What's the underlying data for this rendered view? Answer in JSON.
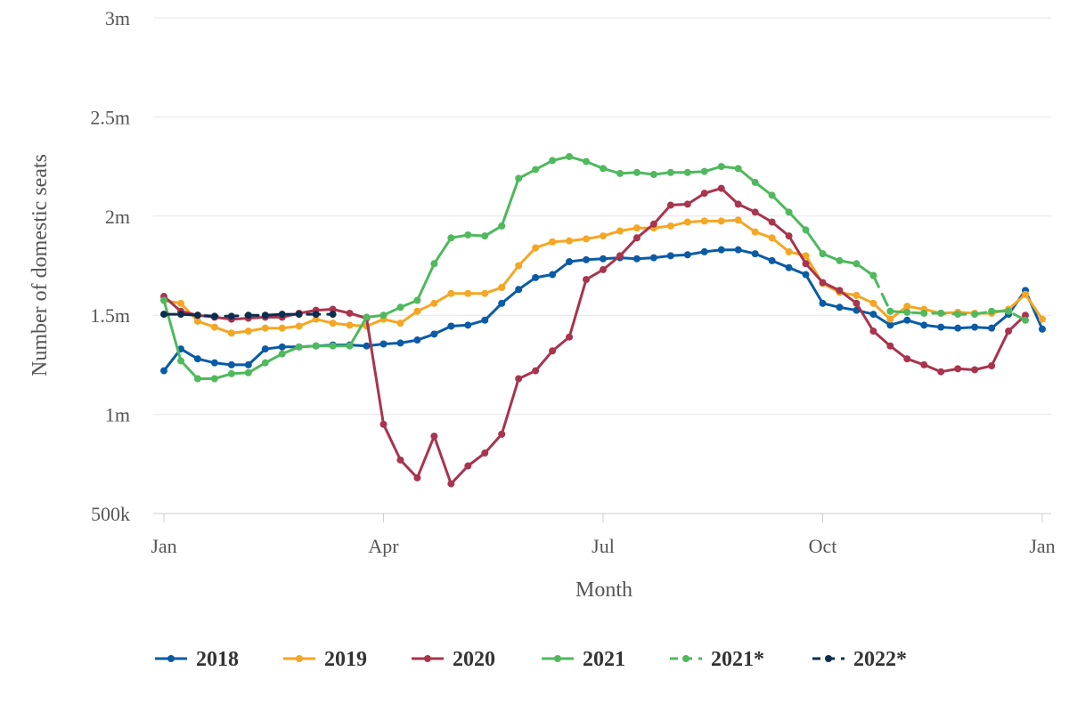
{
  "chart_data": {
    "type": "line",
    "title": "",
    "xlabel": "Month",
    "ylabel": "Number of domestic seats",
    "x_ticks": [
      {
        "label": "Jan",
        "week": 0
      },
      {
        "label": "Apr",
        "week": 13
      },
      {
        "label": "Jul",
        "week": 26
      },
      {
        "label": "Oct",
        "week": 39
      },
      {
        "label": "Jan",
        "week": 52
      }
    ],
    "ylim": [
      500000,
      3000000
    ],
    "y_ticks": [
      {
        "label": "500k",
        "value": 500000
      },
      {
        "label": "1m",
        "value": 1000000
      },
      {
        "label": "1.5m",
        "value": 1500000
      },
      {
        "label": "2m",
        "value": 2000000
      },
      {
        "label": "2.5m",
        "value": 2500000
      },
      {
        "label": "3m",
        "value": 3000000
      }
    ],
    "grid": true,
    "legend_position": "bottom",
    "series": [
      {
        "name": "2018",
        "color": "#0a5ba6",
        "dashed": false,
        "points": [
          [
            0,
            1220000
          ],
          [
            1,
            1330000
          ],
          [
            2,
            1280000
          ],
          [
            3,
            1260000
          ],
          [
            4,
            1250000
          ],
          [
            5,
            1250000
          ],
          [
            6,
            1330000
          ],
          [
            7,
            1340000
          ],
          [
            8,
            1340000
          ],
          [
            9,
            1345000
          ],
          [
            10,
            1350000
          ],
          [
            11,
            1350000
          ],
          [
            12,
            1345000
          ],
          [
            13,
            1355000
          ],
          [
            14,
            1360000
          ],
          [
            15,
            1375000
          ],
          [
            16,
            1405000
          ],
          [
            17,
            1445000
          ],
          [
            18,
            1450000
          ],
          [
            19,
            1475000
          ],
          [
            20,
            1560000
          ],
          [
            21,
            1630000
          ],
          [
            22,
            1690000
          ],
          [
            23,
            1705000
          ],
          [
            24,
            1770000
          ],
          [
            25,
            1780000
          ],
          [
            26,
            1785000
          ],
          [
            27,
            1790000
          ],
          [
            28,
            1785000
          ],
          [
            29,
            1790000
          ],
          [
            30,
            1800000
          ],
          [
            31,
            1805000
          ],
          [
            32,
            1820000
          ],
          [
            33,
            1830000
          ],
          [
            34,
            1830000
          ],
          [
            35,
            1810000
          ],
          [
            36,
            1775000
          ],
          [
            37,
            1740000
          ],
          [
            38,
            1705000
          ],
          [
            39,
            1560000
          ],
          [
            40,
            1540000
          ],
          [
            41,
            1525000
          ],
          [
            42,
            1505000
          ],
          [
            43,
            1450000
          ],
          [
            44,
            1475000
          ],
          [
            45,
            1450000
          ],
          [
            46,
            1440000
          ],
          [
            47,
            1435000
          ],
          [
            48,
            1440000
          ],
          [
            49,
            1435000
          ],
          [
            50,
            1505000
          ],
          [
            51,
            1625000
          ],
          [
            52,
            1430000
          ]
        ]
      },
      {
        "name": "2019",
        "color": "#f5a623",
        "dashed": false,
        "points": [
          [
            0,
            1575000
          ],
          [
            1,
            1560000
          ],
          [
            2,
            1470000
          ],
          [
            3,
            1440000
          ],
          [
            4,
            1410000
          ],
          [
            5,
            1420000
          ],
          [
            6,
            1435000
          ],
          [
            7,
            1435000
          ],
          [
            8,
            1445000
          ],
          [
            9,
            1480000
          ],
          [
            10,
            1460000
          ],
          [
            11,
            1450000
          ],
          [
            12,
            1445000
          ],
          [
            13,
            1480000
          ],
          [
            14,
            1460000
          ],
          [
            15,
            1520000
          ],
          [
            16,
            1560000
          ],
          [
            17,
            1610000
          ],
          [
            18,
            1610000
          ],
          [
            19,
            1610000
          ],
          [
            20,
            1640000
          ],
          [
            21,
            1750000
          ],
          [
            22,
            1840000
          ],
          [
            23,
            1870000
          ],
          [
            24,
            1875000
          ],
          [
            25,
            1885000
          ],
          [
            26,
            1900000
          ],
          [
            27,
            1925000
          ],
          [
            28,
            1940000
          ],
          [
            29,
            1940000
          ],
          [
            30,
            1950000
          ],
          [
            31,
            1970000
          ],
          [
            32,
            1975000
          ],
          [
            33,
            1975000
          ],
          [
            34,
            1980000
          ],
          [
            35,
            1920000
          ],
          [
            36,
            1890000
          ],
          [
            37,
            1820000
          ],
          [
            38,
            1800000
          ],
          [
            39,
            1660000
          ],
          [
            40,
            1615000
          ],
          [
            41,
            1600000
          ],
          [
            42,
            1560000
          ],
          [
            43,
            1480000
          ],
          [
            44,
            1545000
          ],
          [
            45,
            1530000
          ],
          [
            46,
            1510000
          ],
          [
            47,
            1515000
          ],
          [
            48,
            1510000
          ],
          [
            49,
            1510000
          ],
          [
            50,
            1530000
          ],
          [
            51,
            1605000
          ],
          [
            52,
            1480000
          ]
        ]
      },
      {
        "name": "2020",
        "color": "#a8344e",
        "dashed": false,
        "points": [
          [
            0,
            1595000
          ],
          [
            1,
            1520000
          ],
          [
            2,
            1500000
          ],
          [
            3,
            1490000
          ],
          [
            4,
            1480000
          ],
          [
            5,
            1485000
          ],
          [
            6,
            1490000
          ],
          [
            7,
            1490000
          ],
          [
            8,
            1510000
          ],
          [
            9,
            1525000
          ],
          [
            10,
            1530000
          ],
          [
            11,
            1510000
          ],
          [
            12,
            1485000
          ],
          [
            13,
            950000
          ],
          [
            14,
            770000
          ],
          [
            15,
            680000
          ],
          [
            16,
            890000
          ],
          [
            17,
            650000
          ],
          [
            18,
            740000
          ],
          [
            19,
            805000
          ],
          [
            20,
            900000
          ],
          [
            21,
            1180000
          ],
          [
            22,
            1220000
          ],
          [
            23,
            1320000
          ],
          [
            24,
            1390000
          ],
          [
            25,
            1680000
          ],
          [
            26,
            1730000
          ],
          [
            27,
            1800000
          ],
          [
            28,
            1890000
          ],
          [
            29,
            1960000
          ],
          [
            30,
            2055000
          ],
          [
            31,
            2060000
          ],
          [
            32,
            2115000
          ],
          [
            33,
            2140000
          ],
          [
            34,
            2060000
          ],
          [
            35,
            2020000
          ],
          [
            36,
            1970000
          ],
          [
            37,
            1900000
          ],
          [
            38,
            1760000
          ],
          [
            39,
            1665000
          ],
          [
            40,
            1625000
          ],
          [
            41,
            1560000
          ],
          [
            42,
            1420000
          ],
          [
            43,
            1345000
          ],
          [
            44,
            1280000
          ],
          [
            45,
            1250000
          ],
          [
            46,
            1215000
          ],
          [
            47,
            1230000
          ],
          [
            48,
            1225000
          ],
          [
            49,
            1245000
          ],
          [
            50,
            1420000
          ],
          [
            51,
            1500000
          ]
        ]
      },
      {
        "name": "2021",
        "color": "#4fb95d",
        "dashed": false,
        "points": [
          [
            0,
            1575000
          ],
          [
            1,
            1270000
          ],
          [
            2,
            1180000
          ],
          [
            3,
            1180000
          ],
          [
            4,
            1205000
          ],
          [
            5,
            1210000
          ],
          [
            6,
            1260000
          ],
          [
            7,
            1305000
          ],
          [
            8,
            1340000
          ],
          [
            9,
            1345000
          ],
          [
            10,
            1345000
          ],
          [
            11,
            1345000
          ],
          [
            12,
            1490000
          ],
          [
            13,
            1500000
          ],
          [
            14,
            1540000
          ],
          [
            15,
            1575000
          ],
          [
            16,
            1760000
          ],
          [
            17,
            1890000
          ],
          [
            18,
            1905000
          ],
          [
            19,
            1900000
          ],
          [
            20,
            1950000
          ],
          [
            21,
            2190000
          ],
          [
            22,
            2235000
          ],
          [
            23,
            2280000
          ],
          [
            24,
            2300000
          ],
          [
            25,
            2275000
          ],
          [
            26,
            2240000
          ],
          [
            27,
            2215000
          ],
          [
            28,
            2220000
          ],
          [
            29,
            2210000
          ],
          [
            30,
            2220000
          ],
          [
            31,
            2220000
          ],
          [
            32,
            2225000
          ],
          [
            33,
            2250000
          ],
          [
            34,
            2240000
          ],
          [
            35,
            2170000
          ],
          [
            36,
            2105000
          ],
          [
            37,
            2020000
          ],
          [
            38,
            1930000
          ],
          [
            39,
            1810000
          ],
          [
            40,
            1775000
          ],
          [
            41,
            1760000
          ],
          [
            42,
            1700000
          ]
        ]
      },
      {
        "name": "2021*",
        "color": "#4fb95d",
        "dashed": true,
        "points": [
          [
            42,
            1700000
          ],
          [
            43,
            1520000
          ],
          [
            44,
            1515000
          ],
          [
            45,
            1510000
          ],
          [
            46,
            1510000
          ],
          [
            47,
            1505000
          ],
          [
            48,
            1505000
          ],
          [
            49,
            1520000
          ],
          [
            50,
            1520000
          ],
          [
            51,
            1475000
          ]
        ]
      },
      {
        "name": "2022*",
        "color": "#0d2d4f",
        "dashed": true,
        "points": [
          [
            0,
            1505000
          ],
          [
            1,
            1505000
          ],
          [
            2,
            1500000
          ],
          [
            3,
            1495000
          ],
          [
            4,
            1495000
          ],
          [
            5,
            1500000
          ],
          [
            6,
            1500000
          ],
          [
            7,
            1505000
          ],
          [
            8,
            1505000
          ],
          [
            9,
            1505000
          ],
          [
            10,
            1505000
          ]
        ]
      }
    ]
  }
}
